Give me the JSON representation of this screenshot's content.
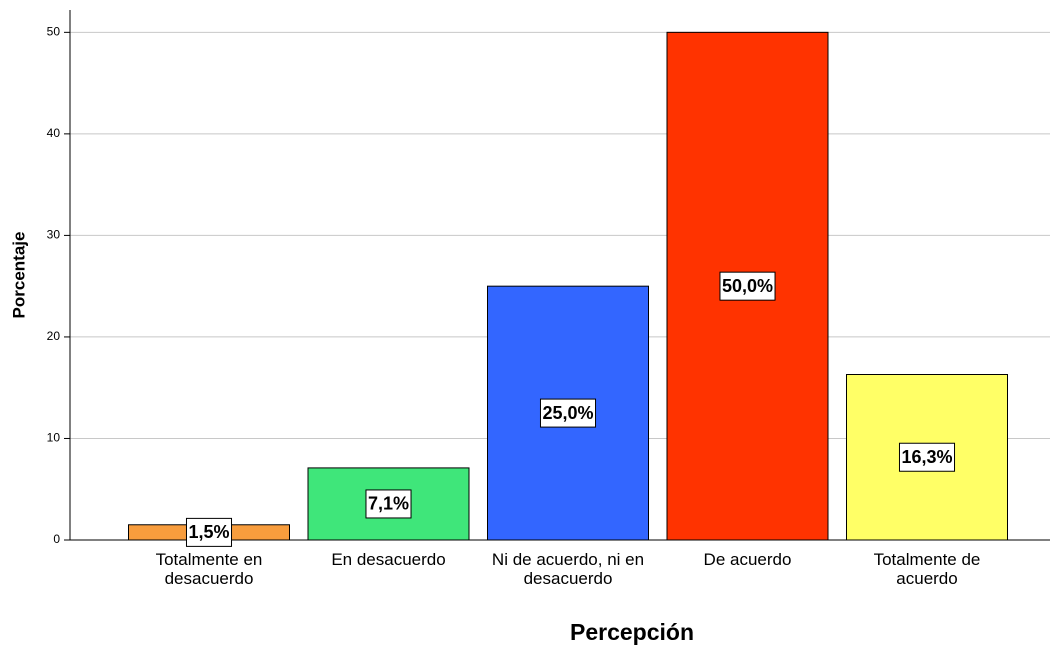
{
  "chart_data": {
    "type": "bar",
    "x_label": "Percepción",
    "y_label": "Porcentaje",
    "categories": [
      "Totalmente en desacuerdo",
      "En desacuerdo",
      "Ni de acuerdo, ni en desacuerdo",
      "De acuerdo",
      "Totalmente de acuerdo"
    ],
    "values": [
      1.5,
      7.1,
      25.0,
      50.0,
      16.3
    ],
    "value_labels": [
      "1,5%",
      "7,1%",
      "25,0%",
      "50,0%",
      "16,3%"
    ],
    "colors": [
      "#f89d3d",
      "#3fe67a",
      "#3366ff",
      "#ff3300",
      "#ffff66"
    ],
    "ylim": [
      0,
      52.2
    ],
    "yticks": [
      0,
      10,
      20,
      30,
      40,
      50
    ],
    "grid": true
  }
}
